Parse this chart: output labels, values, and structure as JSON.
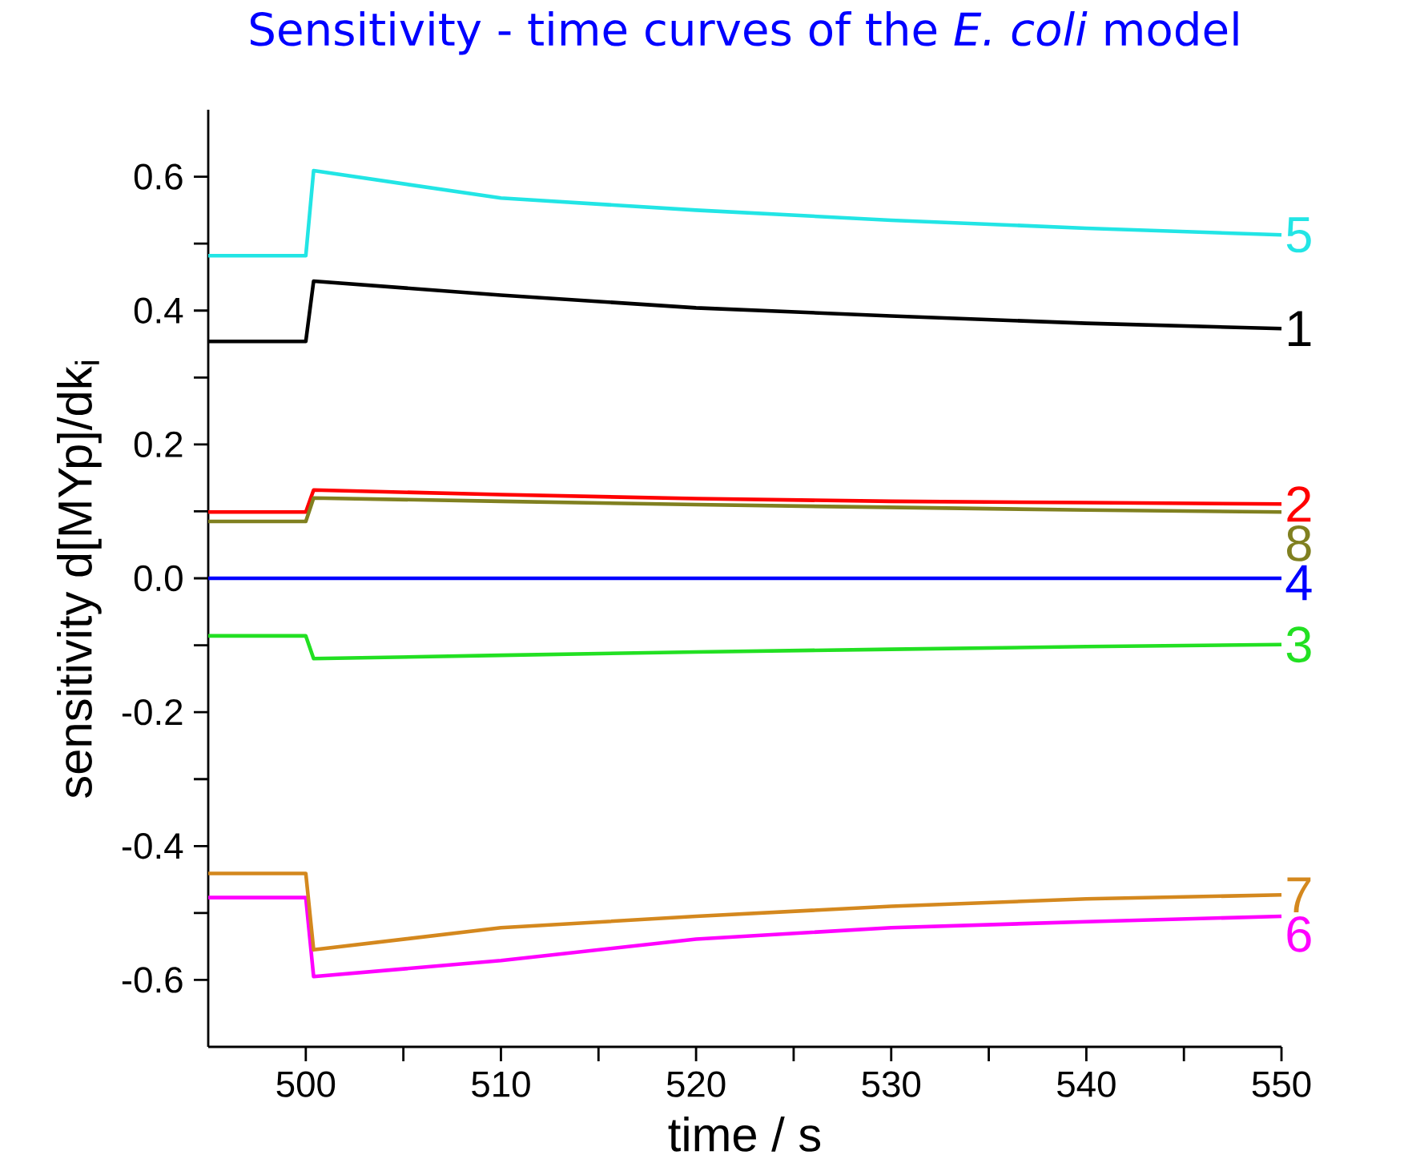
{
  "chart_data": {
    "type": "line",
    "title": "Sensitivity - time curves of the *E. coli* model",
    "xlabel": "time / s",
    "ylabel": "sensitivity d[MYp]/dk$_{i}$",
    "x": [
      495,
      500,
      500.4,
      510,
      520,
      530,
      540,
      550
    ],
    "series": [
      {
        "name": "1",
        "color": "#000000",
        "values": [
          0.354,
          0.354,
          0.444,
          0.423,
          0.404,
          0.392,
          0.381,
          0.373
        ]
      },
      {
        "name": "2",
        "color": "#ff0000",
        "values": [
          0.099,
          0.099,
          0.132,
          0.125,
          0.119,
          0.115,
          0.113,
          0.111
        ]
      },
      {
        "name": "3",
        "color": "#22e022",
        "values": [
          -0.086,
          -0.086,
          -0.12,
          -0.115,
          -0.11,
          -0.106,
          -0.102,
          -0.099
        ]
      },
      {
        "name": "4",
        "color": "#0000ff",
        "values": [
          0,
          0,
          0,
          0,
          0,
          0,
          0,
          0
        ]
      },
      {
        "name": "5",
        "color": "#22e5e5",
        "values": [
          0.482,
          0.482,
          0.609,
          0.568,
          0.55,
          0.535,
          0.523,
          0.513
        ]
      },
      {
        "name": "6",
        "color": "#ff00ff",
        "values": [
          -0.477,
          -0.477,
          -0.595,
          -0.571,
          -0.539,
          -0.522,
          -0.513,
          -0.505
        ]
      },
      {
        "name": "7",
        "color": "#d4881e",
        "values": [
          -0.441,
          -0.441,
          -0.555,
          -0.522,
          -0.505,
          -0.49,
          -0.479,
          -0.473
        ]
      },
      {
        "name": "8",
        "color": "#808020",
        "values": [
          0.085,
          0.085,
          0.12,
          0.115,
          0.11,
          0.106,
          0.102,
          0.099
        ]
      }
    ],
    "xlim": [
      495,
      550
    ],
    "ylim": [
      -0.7,
      0.7
    ],
    "xticks": [
      500,
      510,
      520,
      530,
      540,
      550
    ],
    "yticks": [
      -0.6,
      -0.4,
      -0.2,
      {
        "value": 0,
        "label": "0.0"
      },
      0.2,
      0.4,
      0.6
    ]
  }
}
